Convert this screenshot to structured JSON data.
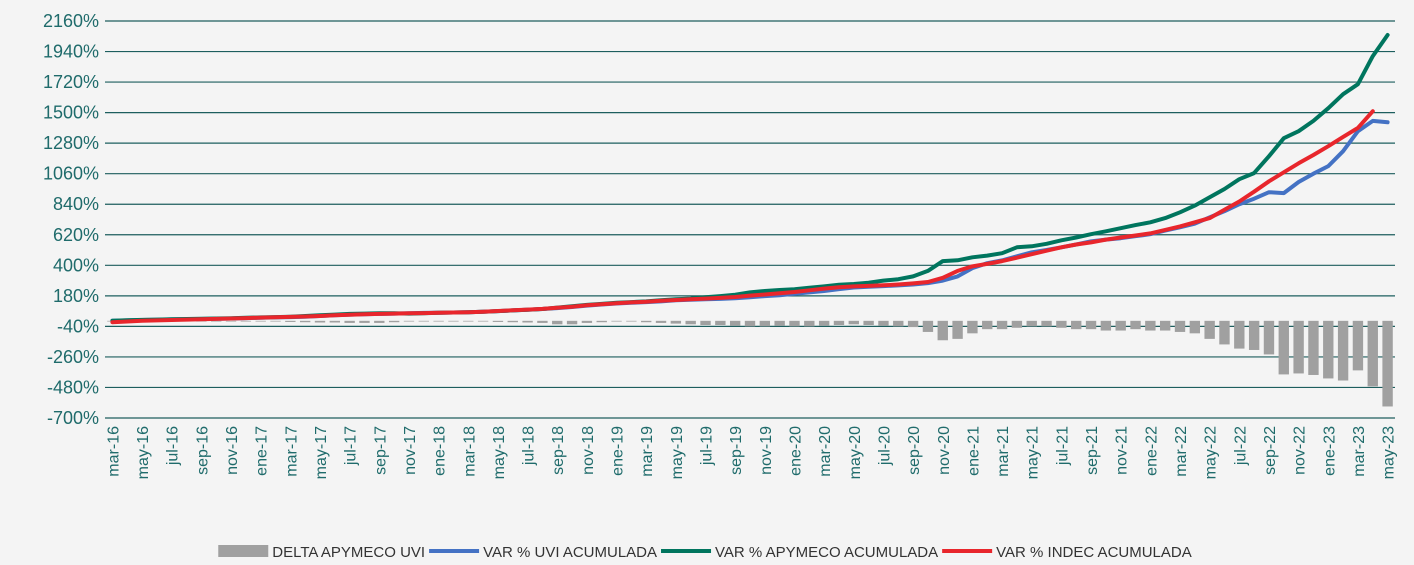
{
  "chart_data": {
    "type": "combo",
    "categories": [
      "mar-16",
      null,
      "may-16",
      null,
      "jul-16",
      null,
      "sep-16",
      null,
      "nov-16",
      null,
      "ene-17",
      null,
      "mar-17",
      null,
      "may-17",
      null,
      "jul-17",
      null,
      "sep-17",
      null,
      "nov-17",
      null,
      "ene-18",
      null,
      "mar-18",
      null,
      "may-18",
      null,
      "jul-18",
      null,
      "sep-18",
      null,
      "nov-18",
      null,
      "ene-19",
      null,
      "mar-19",
      null,
      "may-19",
      null,
      "jul-19",
      null,
      "sep-19",
      null,
      "nov-19",
      null,
      "ene-20",
      null,
      "mar-20",
      null,
      "may-20",
      null,
      "jul-20",
      null,
      "sep-20",
      null,
      "nov-20",
      null,
      "ene-21",
      null,
      "mar-21",
      null,
      "may-21",
      null,
      "jul-21",
      null,
      "sep-21",
      null,
      "nov-21",
      null,
      "ene-22",
      null,
      "mar-22",
      null,
      "may-22",
      null,
      "jul-22",
      null,
      "sep-22",
      null,
      "nov-22",
      null,
      "ene-23",
      null,
      "mar-23",
      null,
      "may-23"
    ],
    "series": [
      {
        "name": "DELTA APYMECO UVI",
        "kind": "bar",
        "color": "#a0a0a0",
        "values": [
          -5,
          -5,
          -5,
          -5,
          -5,
          -5,
          -5,
          -5,
          -5,
          -5,
          -5,
          -5,
          -8,
          -10,
          -12,
          -12,
          -15,
          -15,
          -15,
          -10,
          -5,
          -5,
          -5,
          -5,
          -5,
          -5,
          -8,
          -10,
          -12,
          -15,
          -25,
          -25,
          -15,
          -10,
          -5,
          -5,
          -10,
          -15,
          -20,
          -25,
          -30,
          -30,
          -35,
          -40,
          -40,
          -35,
          -40,
          -40,
          -35,
          -30,
          -25,
          -30,
          -35,
          -40,
          -45,
          -80,
          -140,
          -130,
          -90,
          -60,
          -60,
          -50,
          -40,
          -40,
          -50,
          -60,
          -60,
          -70,
          -70,
          -60,
          -70,
          -70,
          -80,
          -90,
          -130,
          -170,
          -200,
          -210,
          -242,
          -386,
          -379,
          -390,
          -415,
          -430,
          -357,
          -472,
          -617
        ]
      },
      {
        "name": "VAR % UVI ACUMULADA",
        "kind": "line",
        "color": "#4472c4",
        "values": [
          0,
          3,
          6,
          8,
          10,
          12,
          13,
          15,
          17,
          20,
          22,
          25,
          27,
          30,
          35,
          40,
          45,
          48,
          50,
          52,
          55,
          57,
          58,
          60,
          62,
          65,
          70,
          75,
          80,
          85,
          92,
          100,
          110,
          118,
          125,
          130,
          135,
          140,
          148,
          152,
          155,
          158,
          162,
          170,
          178,
          185,
          195,
          205,
          215,
          228,
          240,
          245,
          250,
          255,
          262,
          272,
          290,
          320,
          380,
          415,
          435,
          465,
          494,
          510,
          530,
          550,
          573,
          585,
          595,
          610,
          624,
          650,
          674,
          700,
          746,
          790,
          840,
          880,
          927,
          920,
          1000,
          1060,
          1115,
          1222,
          1366,
          1440,
          1430
        ]
      },
      {
        "name": "VAR % APYMECO ACUMULADA",
        "kind": "line",
        "color": "#00755e",
        "values": [
          0,
          4,
          7,
          9,
          11,
          13,
          15,
          17,
          19,
          22,
          25,
          27,
          30,
          35,
          40,
          45,
          50,
          52,
          55,
          55,
          52,
          55,
          58,
          60,
          62,
          65,
          70,
          75,
          80,
          85,
          95,
          105,
          115,
          122,
          130,
          135,
          140,
          148,
          155,
          160,
          170,
          178,
          188,
          205,
          215,
          222,
          228,
          238,
          248,
          260,
          265,
          275,
          290,
          300,
          320,
          360,
          430,
          436,
          458,
          470,
          487,
          530,
          537,
          555,
          580,
          600,
          624,
          645,
          667,
          690,
          710,
          740,
          782,
          830,
          890,
          950,
          1020,
          1064,
          1186,
          1316,
          1366,
          1440,
          1532,
          1633,
          1705,
          1907,
          2059
        ]
      },
      {
        "name": "VAR % INDEC ACUMULADA",
        "kind": "line",
        "color": "#e8262c",
        "values": [
          -10,
          -5,
          0,
          3,
          6,
          9,
          12,
          14,
          17,
          20,
          23,
          26,
          28,
          31,
          35,
          40,
          44,
          47,
          50,
          52,
          54,
          56,
          58,
          60,
          62,
          66,
          71,
          76,
          81,
          86,
          94,
          102,
          112,
          120,
          127,
          133,
          138,
          144,
          150,
          155,
          160,
          165,
          172,
          182,
          190,
          198,
          208,
          220,
          232,
          242,
          248,
          252,
          256,
          262,
          270,
          280,
          310,
          360,
          393,
          410,
          430,
          455,
          480,
          505,
          530,
          550,
          565,
          585,
          600,
          615,
          630,
          655,
          680,
          710,
          740,
          800,
          860,
          930,
          1005,
          1070,
          1135,
          1195,
          1258,
          1325,
          1390,
          1510,
          null
        ]
      }
    ],
    "ylim": [
      -700,
      2160
    ],
    "yticks": [
      {
        "value": -700,
        "label": "-700%"
      },
      {
        "value": -480,
        "label": "-480%"
      },
      {
        "value": -260,
        "label": "-260%"
      },
      {
        "value": -40,
        "label": "-40%"
      },
      {
        "value": 180,
        "label": "180%"
      },
      {
        "value": 400,
        "label": "400%"
      },
      {
        "value": 620,
        "label": "620%"
      },
      {
        "value": 840,
        "label": "840%"
      },
      {
        "value": 1060,
        "label": "1060%"
      },
      {
        "value": 1280,
        "label": "1280%"
      },
      {
        "value": 1500,
        "label": "1500%"
      },
      {
        "value": 1720,
        "label": "1720%"
      },
      {
        "value": 1940,
        "label": "1940%"
      },
      {
        "value": 2160,
        "label": "2160%"
      }
    ],
    "grid": true,
    "legend": "bottom"
  }
}
